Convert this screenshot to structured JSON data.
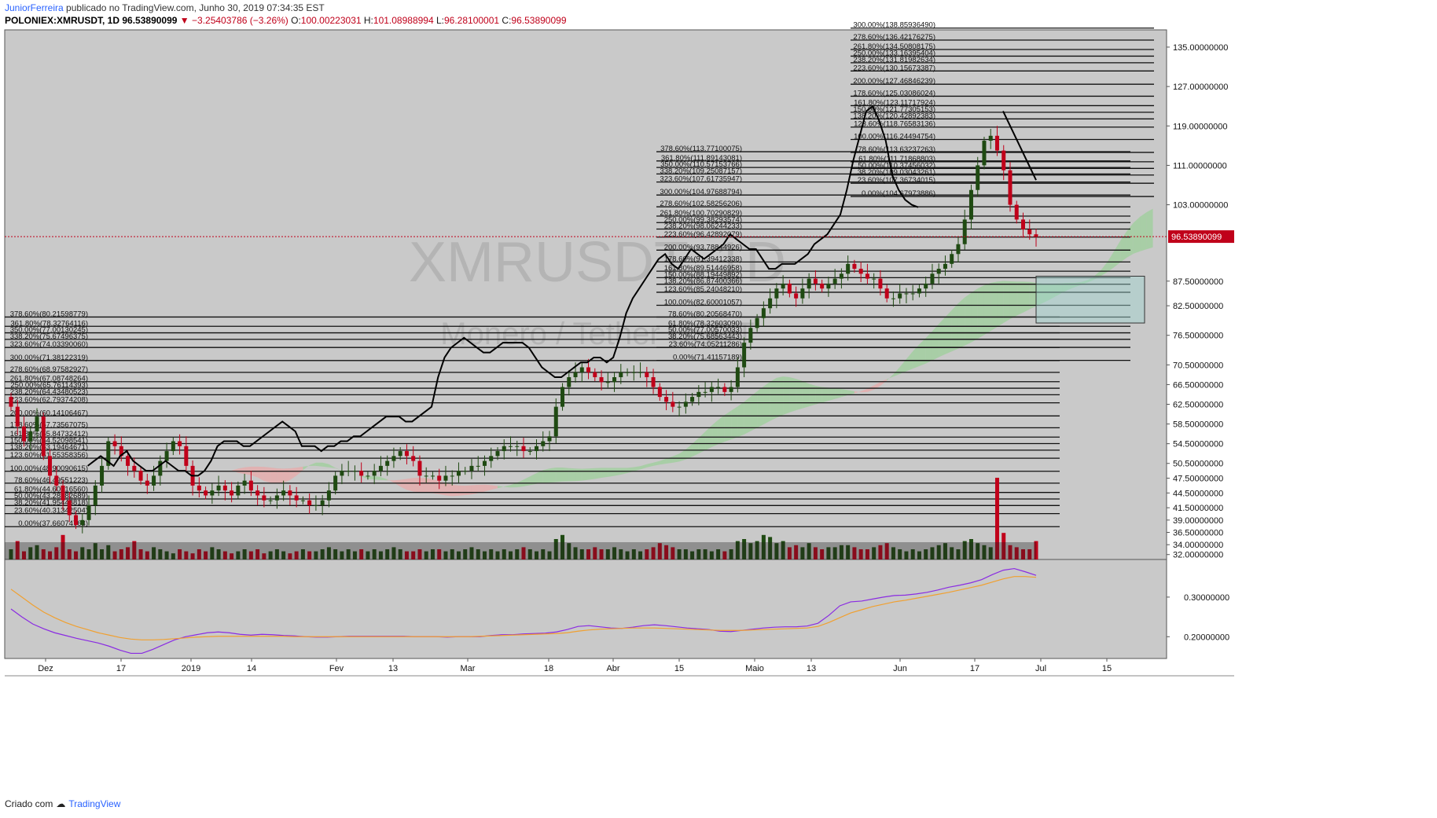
{
  "header": {
    "author": "JuniorFerreira",
    "published": "publicado no TradingView.com, Junho 30, 2019 07:34:35 EST",
    "symbol": "POLONIEX:XMRUSDT, 1D",
    "last": "96.53890099",
    "change": "−3.25403786 (−3.26%)",
    "o_label": "O:",
    "o_value": "100.00223031",
    "h_label": "H:",
    "h_value": "101.08988994",
    "l_label": "L:",
    "l_value": "96.28100001",
    "c_label": "C:",
    "c_value": "96.53890099"
  },
  "footer": {
    "created": "Criado com",
    "brand": "TradingView"
  },
  "watermark": {
    "symbol": "XMRUSDT, 1D",
    "name": "Monero / Tether USDT"
  },
  "colors": {
    "background": "#c9c9c9",
    "up": "#1f4a12",
    "down": "#c0001a",
    "cloud_bull": "#9ccf9a",
    "cloud_bear": "#e8a8a8",
    "price_line": "#c0001a",
    "line": "#000000",
    "rsi_fast": "#8a2be2",
    "rsi_slow": "#f0a030"
  },
  "chart_data": [
    {
      "type": "candlestick",
      "title": "POLONIEX:XMRUSDT, 1D",
      "x_ticks": [
        "Dez",
        "17",
        "2019",
        "14",
        "Fev",
        "13",
        "Mar",
        "18",
        "Abr",
        "15",
        "Maio",
        "13",
        "Jun",
        "17",
        "Jul",
        "15"
      ],
      "y_ticks": [
        "135.00000000",
        "127.00000000",
        "119.00000000",
        "111.00000000",
        "103.00000000",
        "87.50000000",
        "82.50000000",
        "76.50000000",
        "70.50000000",
        "66.50000000",
        "62.50000000",
        "58.50000000",
        "54.50000000",
        "50.50000000",
        "47.50000000",
        "44.50000000",
        "41.50000000",
        "39.00000000",
        "36.50000000",
        "34.00000000",
        "32.00000000"
      ],
      "ylim": [
        31.0,
        138.5
      ],
      "last_price_label": "96.53890099",
      "closes": [
        62,
        58,
        55,
        57,
        60,
        52,
        48,
        46,
        43,
        40,
        38,
        39,
        42,
        46,
        50,
        55,
        54,
        52,
        50,
        49,
        47,
        46,
        48,
        51,
        53,
        55,
        54,
        50,
        46,
        45,
        44,
        45,
        46,
        45,
        44,
        46,
        47,
        45,
        44,
        43,
        43,
        44,
        45,
        44,
        43,
        43,
        42,
        42,
        43,
        45,
        48,
        49,
        49,
        49,
        48,
        48,
        49,
        50,
        51,
        52,
        53,
        52,
        51,
        48,
        48,
        48,
        47,
        48,
        48,
        49,
        49,
        50,
        50,
        51,
        52,
        53,
        54,
        54,
        54,
        53,
        53,
        54,
        55,
        56,
        62,
        66,
        68,
        69,
        70,
        69,
        68,
        67,
        67,
        68,
        69,
        69,
        69,
        69,
        68,
        66,
        64,
        63,
        62,
        62,
        63,
        64,
        65,
        65,
        66,
        66,
        65,
        66,
        70,
        75,
        78,
        80,
        82,
        84,
        86,
        87,
        85,
        84,
        86,
        88,
        87,
        86,
        87,
        88,
        89,
        91,
        90,
        89,
        88,
        88,
        86,
        84,
        84,
        85,
        85,
        85,
        86,
        87,
        89,
        90,
        91,
        93,
        95,
        100,
        106,
        111,
        116,
        117,
        114,
        110,
        103,
        100,
        98,
        97,
        96.5
      ],
      "fib_levels_left": [
        {
          "label": "378.60%(80.21598779)",
          "value": 80.216
        },
        {
          "label": "361.80%(78.32764116)",
          "value": 78.328
        },
        {
          "label": "350.00%(77.00130245)",
          "value": 77.001
        },
        {
          "label": "338.20%(75.67496375)",
          "value": 75.675
        },
        {
          "label": "323.60%(74.03390060)",
          "value": 74.034
        },
        {
          "label": "300.00%(71.38122319)",
          "value": 71.381
        },
        {
          "label": "278.60%(68.97582927)",
          "value": 68.976
        },
        {
          "label": "261.80%(67.08748264)",
          "value": 67.087
        },
        {
          "label": "250.00%(65.76114393)",
          "value": 65.761
        },
        {
          "label": "238.20%(64.43480523)",
          "value": 64.435
        },
        {
          "label": "223.60%(62.79374208)",
          "value": 62.794
        },
        {
          "label": "200.00%(60.14106467)",
          "value": 60.141
        },
        {
          "label": "178.60%(57.73567075)",
          "value": 57.736
        },
        {
          "label": "161.80%(55.84732412)",
          "value": 55.847
        },
        {
          "label": "150.00%(54.52098541)",
          "value": 54.521
        },
        {
          "label": "138.20%(53.19464671)",
          "value": 53.195
        },
        {
          "label": "123.60%(51.55358356)",
          "value": 51.554
        },
        {
          "label": "100.00%(48.90090615)",
          "value": 48.901
        },
        {
          "label": "78.60%(46.49551223)",
          "value": 46.496
        },
        {
          "label": "61.80%(44.60716560)",
          "value": 44.607
        },
        {
          "label": "50.00%(43.28082689)",
          "value": 43.281
        },
        {
          "label": "38.20%(41.95448818)",
          "value": 41.954
        },
        {
          "label": "23.60%(40.31342504)",
          "value": 40.313
        },
        {
          "label": "0.00%(37.66074763)",
          "value": 37.661
        }
      ],
      "fib_levels_mid": [
        {
          "label": "378.60%(113.77100075)",
          "value": 113.771
        },
        {
          "label": "361.80%(111.89143081)",
          "value": 111.891
        },
        {
          "label": "350.00%(110.57153766)",
          "value": 110.572
        },
        {
          "label": "338.20%(109.25087157)",
          "value": 109.251
        },
        {
          "label": "323.60%(107.61735947)",
          "value": 107.617
        },
        {
          "label": "300.00%(104.97688794)",
          "value": 104.977
        },
        {
          "label": "278.60%(102.58256206)",
          "value": 102.583
        },
        {
          "label": "261.80%(100.70290829)",
          "value": 100.703
        },
        {
          "label": "250.00%(99.38293574)",
          "value": 99.383
        },
        {
          "label": "238.20%(98.06244233)",
          "value": 98.062
        },
        {
          "label": "223.60%(96.42892079)",
          "value": 96.429
        },
        {
          "label": "200.00%(93.78844926)",
          "value": 93.788
        },
        {
          "label": "178.60%(91.39412338)",
          "value": 91.394
        },
        {
          "label": "161.80%(89.51446958)",
          "value": 89.514
        },
        {
          "label": "150.00%(88.19449892)",
          "value": 88.194
        },
        {
          "label": "138.20%(86.87400366)",
          "value": 86.874
        },
        {
          "label": "123.60%(85.24048210)",
          "value": 85.24
        },
        {
          "label": "100.00%(82.60001057)",
          "value": 82.6
        },
        {
          "label": "78.60%(80.20568470)",
          "value": 80.206
        },
        {
          "label": "61.80%(78.32603090)",
          "value": 78.326
        },
        {
          "label": "50.00%(77.00570033)",
          "value": 77.006
        },
        {
          "label": "38.20%(75.68563443)",
          "value": 75.686
        },
        {
          "label": "23.60%(74.05211286)",
          "value": 74.052
        },
        {
          "label": "0.00%(71.41157189)",
          "value": 71.412
        }
      ],
      "fib_levels_top": [
        {
          "label": "300.00%(138.85936490)",
          "value": 138.859
        },
        {
          "label": "278.60%(136.42176275)",
          "value": 136.422
        },
        {
          "label": "261.80%(134.50808175)",
          "value": 134.508
        },
        {
          "label": "250.00%(133.16395404)",
          "value": 133.164
        },
        {
          "label": "238.20%(131.81982634)",
          "value": 131.82
        },
        {
          "label": "223.60%(130.15673387)",
          "value": 130.157
        },
        {
          "label": "200.00%(127.46846239)",
          "value": 127.468
        },
        {
          "label": "178.60%(125.03086024)",
          "value": 125.031
        },
        {
          "label": "161.80%(123.11717924)",
          "value": 123.117
        },
        {
          "label": "150.00%(121.77305153)",
          "value": 121.773
        },
        {
          "label": "138.20%(120.42892383)",
          "value": 120.429
        },
        {
          "label": "123.60%(118.76583136)",
          "value": 118.766
        },
        {
          "label": "100.00%(116.24494754)",
          "value": 116.245
        },
        {
          "label": "78.60%(113.63237263)",
          "value": 113.632
        },
        {
          "label": "61.80%(111.71868803)",
          "value": 111.719
        },
        {
          "label": "50.00%(110.37456032)",
          "value": 110.375
        },
        {
          "label": "38.20%(109.03043261)",
          "value": 109.03
        },
        {
          "label": "23.60%(107.36734015)",
          "value": 107.367
        },
        {
          "label": "0.00%(104.67973886)",
          "value": 104.68
        }
      ]
    },
    {
      "type": "line",
      "y_ticks": [
        "0.30000000",
        "0.20000000"
      ],
      "ylim": [
        0.145,
        0.395
      ],
      "series": [
        {
          "values": [
            0.27,
            0.25,
            0.232,
            0.22,
            0.21,
            0.203,
            0.196,
            0.19,
            0.184,
            0.176,
            0.166,
            0.158,
            0.158,
            0.168,
            0.18,
            0.192,
            0.2,
            0.205,
            0.21,
            0.212,
            0.21,
            0.206,
            0.204,
            0.206,
            0.205,
            0.203,
            0.202,
            0.2,
            0.199,
            0.199,
            0.2,
            0.201,
            0.201,
            0.201,
            0.201,
            0.201,
            0.201,
            0.2,
            0.2,
            0.2,
            0.199,
            0.2,
            0.2,
            0.2,
            0.203,
            0.205,
            0.205,
            0.207,
            0.208,
            0.209,
            0.212,
            0.218,
            0.226,
            0.228,
            0.225,
            0.222,
            0.221,
            0.224,
            0.228,
            0.23,
            0.228,
            0.225,
            0.222,
            0.22,
            0.218,
            0.214,
            0.213,
            0.216,
            0.219,
            0.222,
            0.224,
            0.225,
            0.225,
            0.227,
            0.234,
            0.254,
            0.278,
            0.288,
            0.29,
            0.295,
            0.3,
            0.304,
            0.305,
            0.308,
            0.312,
            0.318,
            0.325,
            0.33,
            0.336,
            0.344,
            0.357,
            0.368,
            0.372,
            0.364,
            0.355
          ]
        },
        {
          "values": [
            0.32,
            0.3,
            0.28,
            0.262,
            0.248,
            0.236,
            0.226,
            0.218,
            0.21,
            0.204,
            0.198,
            0.194,
            0.192,
            0.192,
            0.193,
            0.195,
            0.197,
            0.199,
            0.2,
            0.201,
            0.201,
            0.201,
            0.201,
            0.201,
            0.201,
            0.201,
            0.2,
            0.2,
            0.2,
            0.2,
            0.2,
            0.2,
            0.2,
            0.2,
            0.2,
            0.2,
            0.2,
            0.2,
            0.2,
            0.2,
            0.2,
            0.2,
            0.2,
            0.201,
            0.202,
            0.203,
            0.204,
            0.205,
            0.206,
            0.207,
            0.208,
            0.21,
            0.214,
            0.217,
            0.219,
            0.22,
            0.221,
            0.222,
            0.222,
            0.222,
            0.221,
            0.22,
            0.219,
            0.218,
            0.217,
            0.216,
            0.216,
            0.216,
            0.217,
            0.218,
            0.219,
            0.22,
            0.221,
            0.222,
            0.226,
            0.236,
            0.248,
            0.26,
            0.268,
            0.276,
            0.282,
            0.288,
            0.292,
            0.297,
            0.302,
            0.307,
            0.312,
            0.318,
            0.324,
            0.33,
            0.338,
            0.346,
            0.352,
            0.352,
            0.35
          ]
        }
      ]
    }
  ]
}
